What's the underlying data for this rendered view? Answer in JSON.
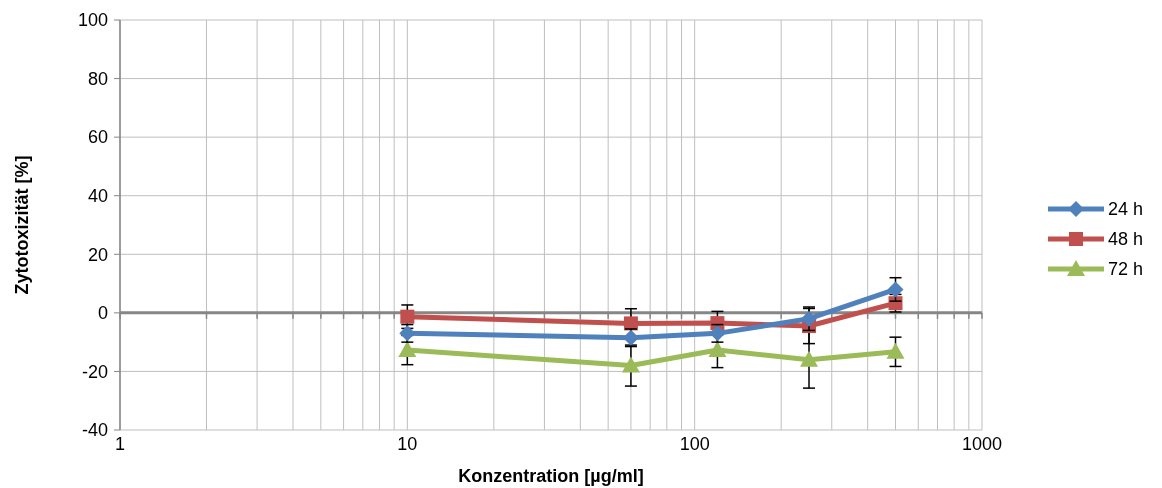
{
  "chart_data": {
    "type": "line",
    "xlabel": "Konzentration [µg/ml]",
    "ylabel": "Zytotoxizität [%]",
    "log": "x",
    "grid": true,
    "legend": "right",
    "line_style": "solid",
    "xlim": [
      1,
      1000
    ],
    "ylim": [
      -40,
      100
    ],
    "yticks": [
      -40,
      -20,
      0,
      20,
      40,
      60,
      80,
      100
    ],
    "xticks": [
      1,
      {
        "value": 2,
        "label": null
      },
      {
        "value": 3,
        "label": null
      },
      {
        "value": 4,
        "label": null
      },
      {
        "value": 5,
        "label": null
      },
      {
        "value": 6,
        "label": null
      },
      {
        "value": 7,
        "label": null
      },
      {
        "value": 8,
        "label": null
      },
      {
        "value": 9,
        "label": null
      },
      10,
      {
        "value": 20,
        "label": null
      },
      {
        "value": 30,
        "label": null
      },
      {
        "value": 40,
        "label": null
      },
      {
        "value": 50,
        "label": null
      },
      {
        "value": 60,
        "label": null
      },
      {
        "value": 70,
        "label": null
      },
      {
        "value": 80,
        "label": null
      },
      {
        "value": 90,
        "label": null
      },
      100,
      {
        "value": 200,
        "label": null
      },
      {
        "value": 300,
        "label": null
      },
      {
        "value": 400,
        "label": null
      },
      {
        "value": 500,
        "label": null
      },
      {
        "value": 600,
        "label": null
      },
      {
        "value": 700,
        "label": null
      },
      {
        "value": 800,
        "label": null
      },
      {
        "value": 900,
        "label": null
      },
      1000
    ],
    "x": [
      10,
      60,
      120,
      250,
      500
    ],
    "series": [
      {
        "name": "24 h",
        "color": "#4f81bd",
        "marker": "diamond",
        "values": [
          -7,
          -8.5,
          -7,
          -2,
          8
        ],
        "errors": [
          3,
          3,
          3,
          4,
          4
        ]
      },
      {
        "name": "48 h",
        "color": "#c0504d",
        "marker": "square",
        "values": [
          -1.3,
          -3.6,
          -3.5,
          -4.5,
          3.3
        ],
        "errors": [
          4,
          5,
          4,
          6,
          3
        ]
      },
      {
        "name": "72 h",
        "color": "#9bbb59",
        "marker": "triangle",
        "values": [
          -12.7,
          -18,
          -12.7,
          -16,
          -13.3
        ],
        "errors": [
          5,
          7,
          6,
          9.7,
          5
        ]
      }
    ]
  }
}
